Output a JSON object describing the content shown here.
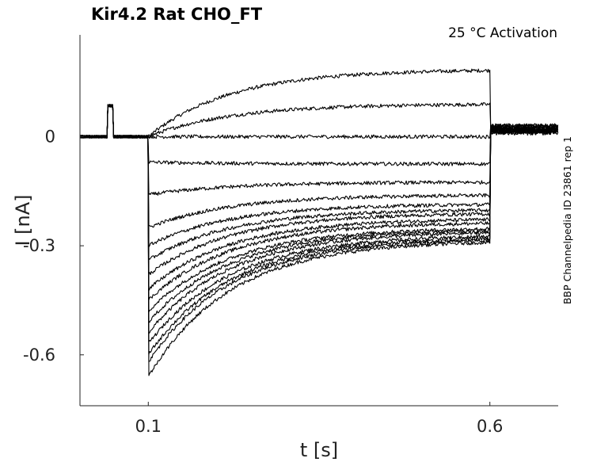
{
  "chart_data": {
    "type": "line",
    "title": "Kir4.2  Rat  CHO_FT",
    "condition": "25 °C  Activation",
    "xlabel": "t [s]",
    "ylabel": "I [nA]",
    "xlim": [
      0.0,
      0.7
    ],
    "ylim": [
      -0.74,
      0.28
    ],
    "xticks": [
      0.1,
      0.6
    ],
    "xtick_labels": [
      "0.1",
      "0.6"
    ],
    "yticks": [
      0,
      -0.3,
      -0.6
    ],
    "ytick_labels": [
      "0",
      "-0.3",
      "-0.6"
    ],
    "grid": false,
    "legend": "none",
    "source_note": "BBP Channelpedia ID 23861 rep 1",
    "protocol": {
      "prepulse_start": 0.04,
      "prepulse_end": 0.048,
      "prepulse_current": 0.085,
      "step_start": 0.1,
      "step_end": 0.6,
      "baseline_current": 0.0
    },
    "series": [
      {
        "peak": 0.0,
        "steady": 0.185,
        "tail": 0.03
      },
      {
        "peak": 0.0,
        "steady": 0.09,
        "tail": 0.025
      },
      {
        "peak": 0.0,
        "steady": 0.0,
        "tail": 0.03
      },
      {
        "peak": -0.07,
        "steady": -0.075,
        "tail": 0.028
      },
      {
        "peak": -0.16,
        "steady": -0.125,
        "tail": 0.022
      },
      {
        "peak": -0.25,
        "steady": -0.16,
        "tail": 0.02
      },
      {
        "peak": -0.3,
        "steady": -0.185,
        "tail": 0.015
      },
      {
        "peak": -0.34,
        "steady": -0.2,
        "tail": 0.025
      },
      {
        "peak": -0.38,
        "steady": -0.21,
        "tail": 0.018
      },
      {
        "peak": -0.42,
        "steady": -0.225,
        "tail": 0.012
      },
      {
        "peak": -0.45,
        "steady": -0.235,
        "tail": 0.02
      },
      {
        "peak": -0.48,
        "steady": -0.25,
        "tail": 0.015
      },
      {
        "peak": -0.51,
        "steady": -0.255,
        "tail": 0.01
      },
      {
        "peak": -0.54,
        "steady": -0.26,
        "tail": 0.022
      },
      {
        "peak": -0.57,
        "steady": -0.27,
        "tail": 0.018
      },
      {
        "peak": -0.6,
        "steady": -0.275,
        "tail": 0.012
      },
      {
        "peak": -0.62,
        "steady": -0.28,
        "tail": 0.02
      },
      {
        "peak": -0.66,
        "steady": -0.285,
        "tail": 0.015
      }
    ]
  }
}
